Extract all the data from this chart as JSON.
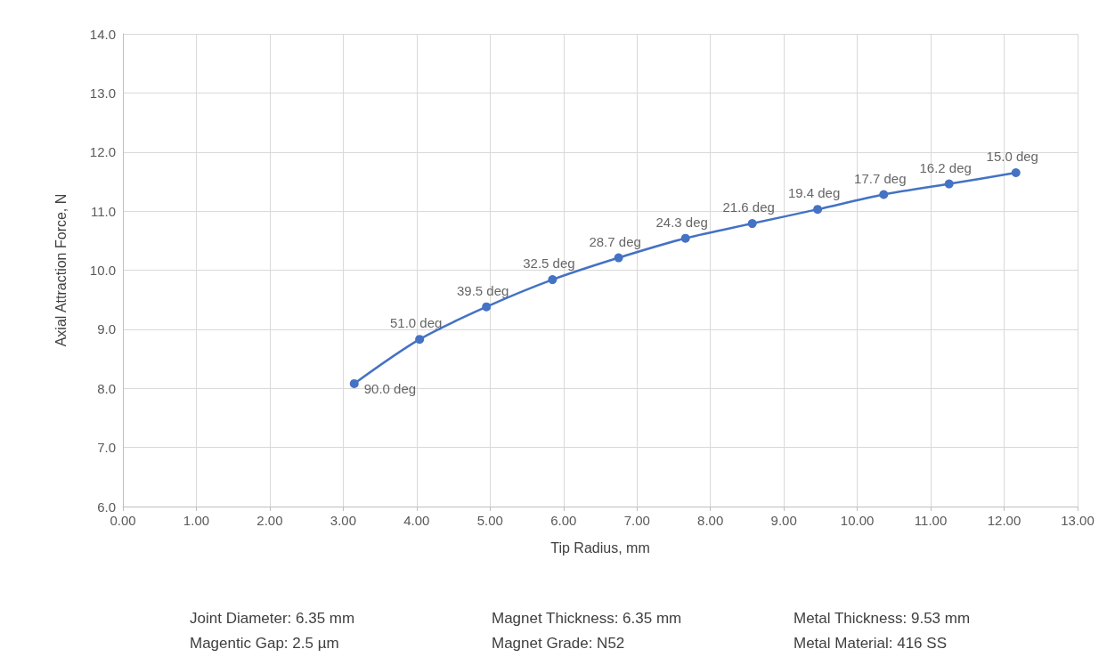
{
  "chart_data": {
    "type": "line",
    "xlabel": "Tip Radius, mm",
    "ylabel": "Axial Attraction Force, N",
    "x": [
      3.15,
      4.04,
      4.95,
      5.85,
      6.75,
      7.66,
      8.57,
      9.46,
      10.36,
      11.25,
      12.16
    ],
    "series": [
      {
        "color": "#4472c4",
        "values": [
          8.08,
          8.83,
          9.38,
          9.84,
          10.21,
          10.54,
          10.79,
          11.03,
          11.28,
          11.46,
          11.65
        ]
      }
    ],
    "xlim": [
      0,
      13
    ],
    "xticks": [
      {
        "value": 0,
        "label": "0.00"
      },
      {
        "value": 1,
        "label": "1.00"
      },
      {
        "value": 2,
        "label": "2.00"
      },
      {
        "value": 3,
        "label": "3.00"
      },
      {
        "value": 4,
        "label": "4.00"
      },
      {
        "value": 5,
        "label": "5.00"
      },
      {
        "value": 6,
        "label": "6.00"
      },
      {
        "value": 7,
        "label": "7.00"
      },
      {
        "value": 8,
        "label": "8.00"
      },
      {
        "value": 9,
        "label": "9.00"
      },
      {
        "value": 10,
        "label": "10.00"
      },
      {
        "value": 11,
        "label": "11.00"
      },
      {
        "value": 12,
        "label": "12.00"
      },
      {
        "value": 13,
        "label": "13.00"
      }
    ],
    "ylim": [
      6,
      14
    ],
    "yticks": [
      {
        "value": 6,
        "label": "6.0"
      },
      {
        "value": 7,
        "label": "7.0"
      },
      {
        "value": 8,
        "label": "8.0"
      },
      {
        "value": 9,
        "label": "9.0"
      },
      {
        "value": 10,
        "label": "10.0"
      },
      {
        "value": 11,
        "label": "11.0"
      },
      {
        "value": 12,
        "label": "12.0"
      },
      {
        "value": 13,
        "label": "13.0"
      },
      {
        "value": 14,
        "label": "14.0"
      }
    ],
    "grid": true,
    "marker": "circle",
    "line_style": "solid",
    "annotations": [
      {
        "text": "90.0 deg",
        "x": 3.15,
        "y": 8.08
      },
      {
        "text": "51.0 deg",
        "x": 4.04,
        "y": 8.83
      },
      {
        "text": "39.5 deg",
        "x": 4.95,
        "y": 9.38
      },
      {
        "text": "32.5 deg",
        "x": 5.85,
        "y": 9.84
      },
      {
        "text": "28.7 deg",
        "x": 6.75,
        "y": 10.21
      },
      {
        "text": "24.3 deg",
        "x": 7.66,
        "y": 10.54
      },
      {
        "text": "21.6 deg",
        "x": 8.57,
        "y": 10.79
      },
      {
        "text": "19.4 deg",
        "x": 9.46,
        "y": 11.03
      },
      {
        "text": "17.7 deg",
        "x": 10.36,
        "y": 11.28
      },
      {
        "text": "16.2 deg",
        "x": 11.25,
        "y": 11.46
      },
      {
        "text": "15.0 deg",
        "x": 12.16,
        "y": 11.65
      },
      "Joint Diameter: 6.35 mm",
      "Magentic Gap: 2.5 µm",
      "Magnet Thickness: 6.35 mm",
      "Magnet Grade: N52",
      "Metal Thickness: 9.53 mm",
      "Metal Material: 416 SS"
    ]
  }
}
